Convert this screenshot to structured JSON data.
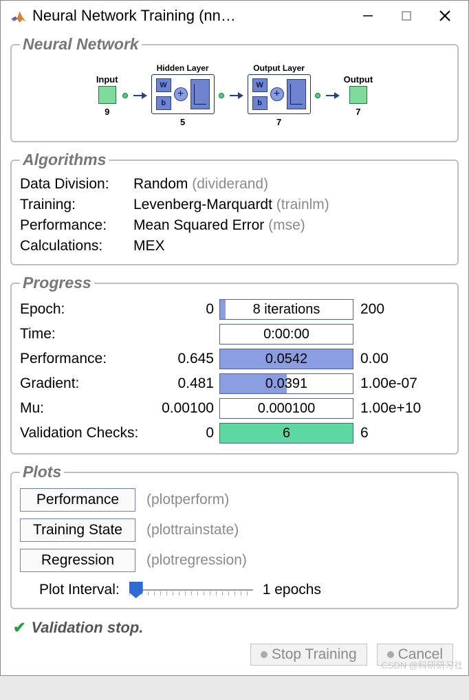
{
  "window": {
    "title": "Neural Network Training (nn…"
  },
  "network": {
    "legend": "Neural Network",
    "input": {
      "label": "Input",
      "count": "9",
      "color": "#7edb9b",
      "border": "#1a7a3f"
    },
    "hidden": {
      "label": "Hidden Layer",
      "count": "5"
    },
    "outputLayer": {
      "label": "Output Layer",
      "count": "7"
    },
    "output": {
      "label": "Output",
      "count": "7",
      "color": "#7edb9b",
      "border": "#1a7a3f"
    },
    "block_fill": "#6e84d0",
    "block_border": "#2a3e89"
  },
  "algorithms": {
    "legend": "Algorithms",
    "rows": [
      {
        "label": "Data Division:",
        "value": "Random",
        "func": "(dividerand)"
      },
      {
        "label": "Training:",
        "value": "Levenberg-Marquardt",
        "func": "(trainlm)"
      },
      {
        "label": "Performance:",
        "value": "Mean Squared Error",
        "func": "(mse)"
      },
      {
        "label": "Calculations:",
        "value": "MEX",
        "func": ""
      }
    ]
  },
  "progress": {
    "legend": "Progress",
    "bar_border": "#4b5faf",
    "blue_fill": "#8a9de0",
    "green_fill": "#5ed8a3",
    "rows": [
      {
        "name": "Epoch:",
        "left": "0",
        "text": "8 iterations",
        "right": "200",
        "percent": 4,
        "color": "#8a9de0"
      },
      {
        "name": "Time:",
        "left": "",
        "text": "0:00:00",
        "right": "",
        "percent": 0,
        "color": "#ffffff"
      },
      {
        "name": "Performance:",
        "left": "0.645",
        "text": "0.0542",
        "right": "0.00",
        "percent": 100,
        "color": "#8a9de0"
      },
      {
        "name": "Gradient:",
        "left": "0.481",
        "text": "0.0391",
        "right": "1.00e-07",
        "percent": 50,
        "color": "#8a9de0"
      },
      {
        "name": "Mu:",
        "left": "0.00100",
        "text": "0.000100",
        "right": "1.00e+10",
        "percent": 0,
        "color": "#ffffff"
      },
      {
        "name": "Validation Checks:",
        "left": "0",
        "text": "6",
        "right": "6",
        "percent": 100,
        "color": "#5ed8a3"
      }
    ]
  },
  "plots": {
    "legend": "Plots",
    "buttons": [
      {
        "label": "Performance",
        "func": "(plotperform)"
      },
      {
        "label": "Training State",
        "func": "(plottrainstate)"
      },
      {
        "label": "Regression",
        "func": "(plotregression)"
      }
    ],
    "slider": {
      "label": "Plot Interval:",
      "value_text": "1 epochs",
      "position_percent": 0
    }
  },
  "status": {
    "text": "Validation stop.",
    "icon_color": "#24a23a"
  },
  "buttons": {
    "stop": "Stop Training",
    "cancel": "Cancel"
  },
  "watermark": "CSDN @科研研习社"
}
